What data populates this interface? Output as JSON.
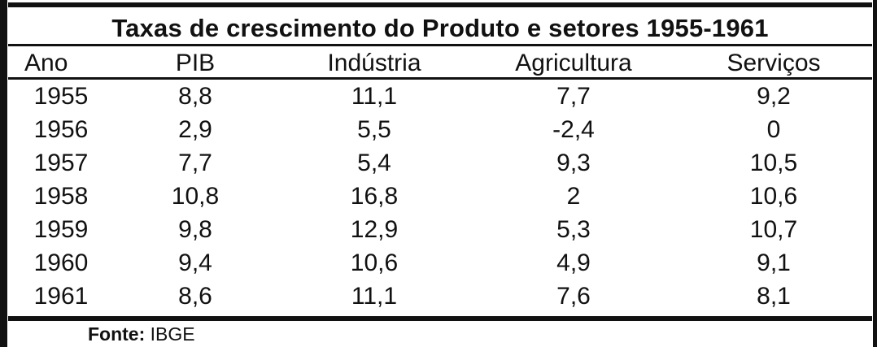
{
  "table": {
    "title": "Taxas de crescimento do Produto e setores 1955-1961",
    "headers": [
      "Ano",
      "PIB",
      "Indústria",
      "Agricultura",
      "Serviços"
    ],
    "rows": [
      [
        "1955",
        "8,8",
        "11,1",
        "7,7",
        "9,2"
      ],
      [
        "1956",
        "2,9",
        "5,5",
        "-2,4",
        "0"
      ],
      [
        "1957",
        "7,7",
        "5,4",
        "9,3",
        "10,5"
      ],
      [
        "1958",
        "10,8",
        "16,8",
        "2",
        "10,6"
      ],
      [
        "1959",
        "9,8",
        "12,9",
        "5,3",
        "10,7"
      ],
      [
        "1960",
        "9,4",
        "10,6",
        "4,9",
        "9,1"
      ],
      [
        "1961",
        "8,6",
        "11,1",
        "7,6",
        "8,1"
      ]
    ]
  },
  "source": {
    "label": "Fonte:",
    "value": "IBGE"
  }
}
